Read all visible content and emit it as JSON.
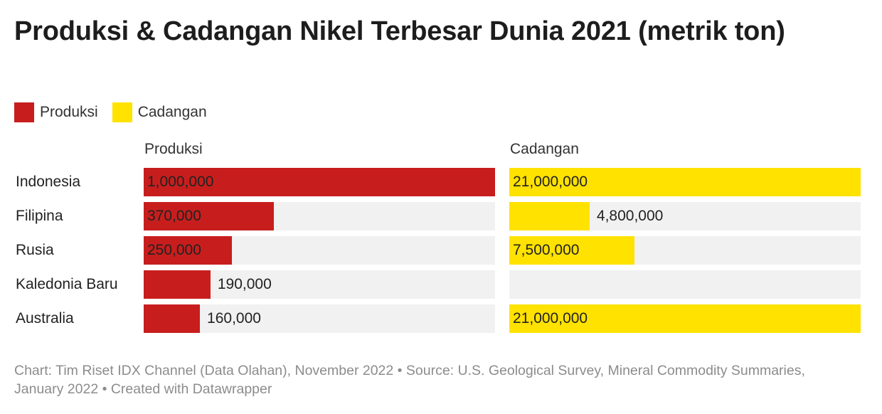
{
  "title": "Produksi & Cadangan Nikel Terbesar Dunia 2021 (metrik ton)",
  "legend": [
    {
      "label": "Produksi",
      "color": "#c71e1d"
    },
    {
      "label": "Cadangan",
      "color": "#ffe200"
    }
  ],
  "chart_data": {
    "type": "bar",
    "categories": [
      "Indonesia",
      "Filipina",
      "Rusia",
      "Kaledonia Baru",
      "Australia"
    ],
    "series": [
      {
        "name": "Produksi",
        "color": "#c71e1d",
        "values": [
          1000000,
          370000,
          250000,
          190000,
          160000
        ],
        "labels": [
          "1,000,000",
          "370,000",
          "250,000",
          "190,000",
          "160,000"
        ]
      },
      {
        "name": "Cadangan",
        "color": "#ffe200",
        "values": [
          21000000,
          4800000,
          7500000,
          null,
          21000000
        ],
        "labels": [
          "21,000,000",
          "4,800,000",
          "7,500,000",
          "",
          "21,000,000"
        ]
      }
    ],
    "column_headers": [
      "Produksi",
      "Cadangan"
    ],
    "xlim": [
      0,
      21000000
    ]
  },
  "footer": "Chart: Tim Riset IDX Channel (Data Olahan), November 2022 • Source: U.S. Geological Survey, Mineral Commodity Summaries, January 2022 • Created with Datawrapper"
}
